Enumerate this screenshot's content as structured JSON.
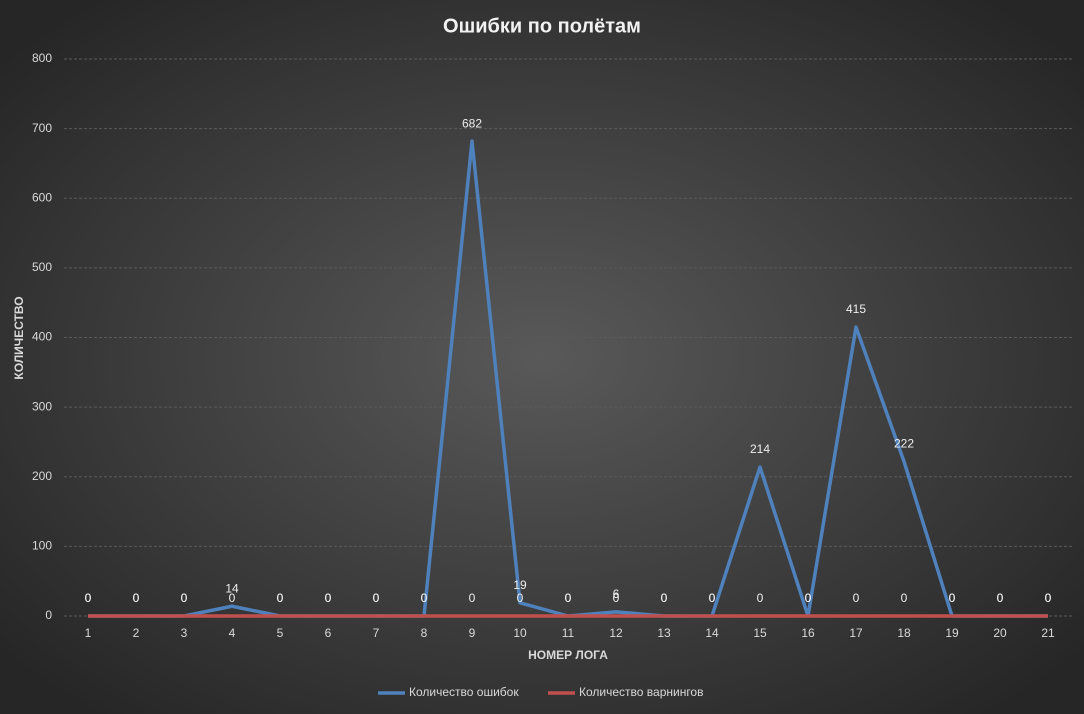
{
  "chart_data": {
    "type": "line",
    "title": "Ошибки по полётам",
    "x_label": "НОМЕР ЛОГА",
    "y_label": "КОЛИЧЕСТВО",
    "categories": [
      "1",
      "2",
      "3",
      "4",
      "5",
      "6",
      "7",
      "8",
      "9",
      "10",
      "11",
      "12",
      "13",
      "14",
      "15",
      "16",
      "17",
      "18",
      "19",
      "20",
      "21"
    ],
    "series": [
      {
        "name": "Количество ошибок",
        "color": "#4f81bd",
        "values": [
          0,
          0,
          0,
          14,
          0,
          0,
          0,
          0,
          682,
          19,
          0,
          6,
          0,
          0,
          214,
          0,
          415,
          222,
          0,
          0,
          0
        ]
      },
      {
        "name": "Количество варнингов",
        "color": "#c0504d",
        "values": [
          0,
          0,
          0,
          0,
          0,
          0,
          0,
          0,
          0,
          0,
          0,
          0,
          0,
          0,
          0,
          0,
          0,
          0,
          0,
          0,
          0
        ]
      }
    ],
    "ylim": [
      0,
      800
    ],
    "yticks": [
      0,
      100,
      200,
      300,
      400,
      500,
      600,
      700,
      800
    ],
    "grid": true,
    "legend": "bottom"
  }
}
